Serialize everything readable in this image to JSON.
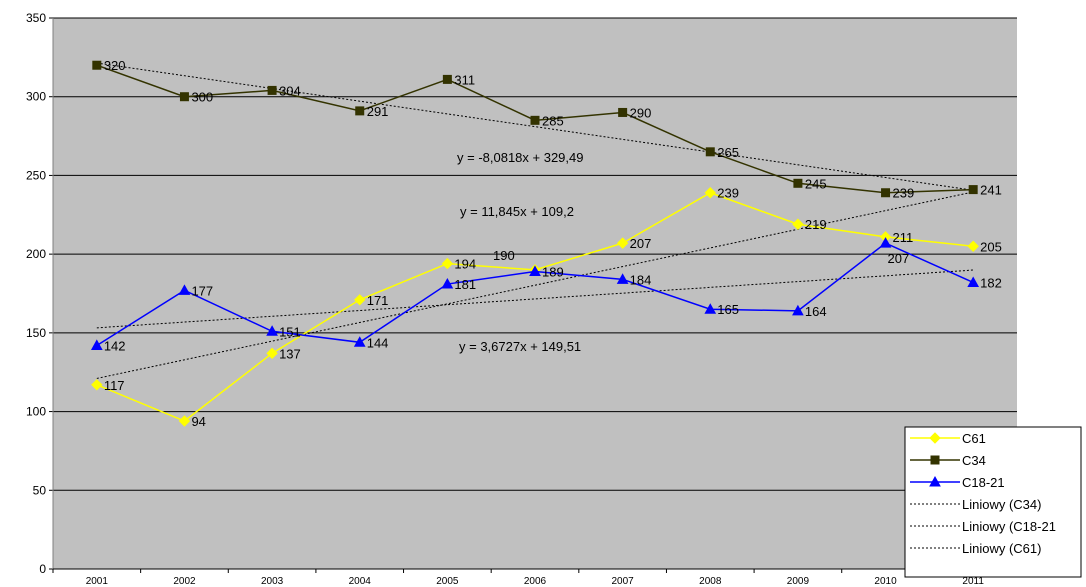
{
  "chart_data": {
    "type": "line",
    "title": "",
    "xlabel": "",
    "ylabel": "",
    "x": [
      "2001",
      "2002",
      "2003",
      "2004",
      "2005",
      "2006",
      "2007",
      "2008",
      "2009",
      "2010",
      "2011"
    ],
    "ylim": [
      0,
      350
    ],
    "yticks": [
      0,
      50,
      100,
      150,
      200,
      250,
      300,
      350
    ],
    "grid": "horizontal",
    "legend_position": "bottom-right",
    "plot_background": "#c0c0c0",
    "series": [
      {
        "name": "C61",
        "color": "#ffff00",
        "marker": "diamond",
        "values": [
          117,
          94,
          137,
          171,
          194,
          190,
          207,
          239,
          219,
          211,
          205
        ]
      },
      {
        "name": "C34",
        "color": "#333300",
        "marker": "square",
        "values": [
          320,
          300,
          304,
          291,
          311,
          285,
          290,
          265,
          245,
          239,
          241
        ]
      },
      {
        "name": "C18-21",
        "color": "#0000ff",
        "marker": "triangle",
        "values": [
          142,
          177,
          151,
          144,
          181,
          189,
          184,
          165,
          164,
          207,
          182
        ]
      }
    ],
    "trendlines": [
      {
        "name": "Liniowy (C34)",
        "of": "C34",
        "slope": -8.0818,
        "intercept": 329.49,
        "equation": "y = -8,0818x + 329,49"
      },
      {
        "name": "Liniowy (C18-21)",
        "of": "C18-21",
        "slope": 3.6727,
        "intercept": 149.51,
        "equation": "y = 3,6727x + 149,51"
      },
      {
        "name": "Liniowy (C61)",
        "of": "C61",
        "slope": 11.845,
        "intercept": 109.2,
        "equation": "y = 11,845x + 109,2"
      }
    ],
    "legend": [
      "C61",
      "C34",
      "C18-21",
      "Liniowy (C34)",
      "Liniowy (C18-21",
      "Liniowy (C61)"
    ]
  }
}
